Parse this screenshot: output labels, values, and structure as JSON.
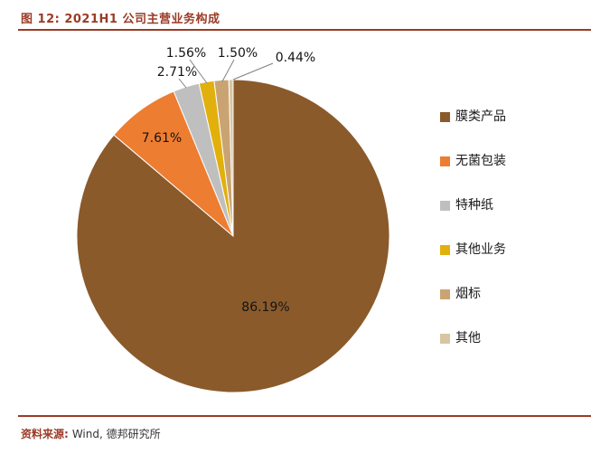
{
  "header": {
    "title": "图 12: 2021H1 公司主营业务构成"
  },
  "footer": {
    "source_label": "资料来源:",
    "source_value": "Wind, 德邦研究所"
  },
  "colors": {
    "accent_maroon": "#9a3b26",
    "leader_line": "#7f7f7f"
  },
  "chart_data": {
    "type": "pie",
    "title": "2021H1 公司主营业务构成",
    "legend_position": "right",
    "start_angle_deg": -90,
    "direction": "clockwise",
    "label_format": "percent",
    "series": [
      {
        "name": "膜类产品",
        "value": 86.19,
        "label": "86.19%",
        "color": "#8a5a2b"
      },
      {
        "name": "无菌包装",
        "value": 7.61,
        "label": "7.61%",
        "color": "#ed7d31"
      },
      {
        "name": "特种纸",
        "value": 2.71,
        "label": "2.71%",
        "color": "#bfbfbf"
      },
      {
        "name": "其他业务",
        "value": 1.56,
        "label": "1.56%",
        "color": "#e2b00d"
      },
      {
        "name": "烟标",
        "value": 1.5,
        "label": "1.50%",
        "color": "#c9a472"
      },
      {
        "name": "其他",
        "value": 0.44,
        "label": "0.44%",
        "color": "#d8c5a3"
      }
    ]
  }
}
